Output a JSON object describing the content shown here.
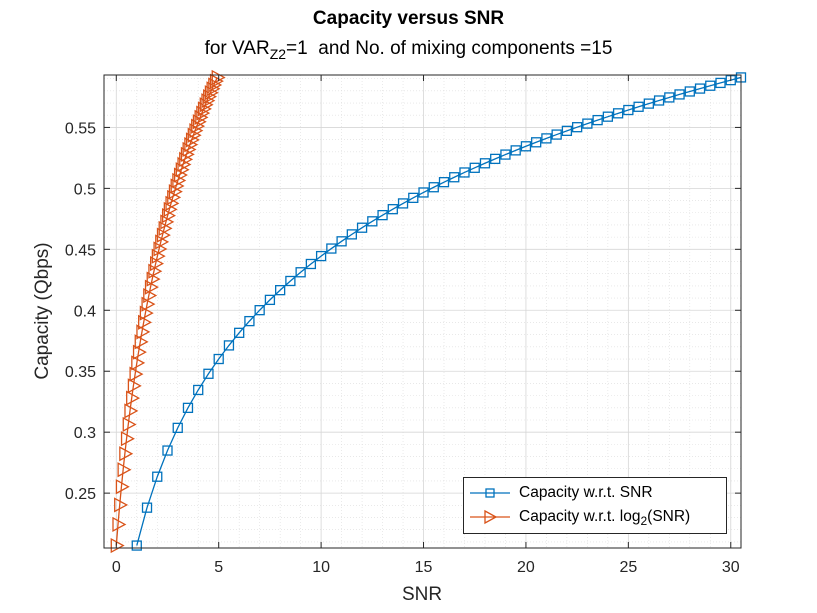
{
  "chart_data": {
    "type": "line",
    "title": "Capacity versus SNR",
    "subtitle": {
      "prefix": "for VAR",
      "subscript": "Z2",
      "suffix": "=1  and No. of mixing components =15"
    },
    "xlabel": "SNR",
    "ylabel": "Capacity (Qbps)",
    "xlim": [
      -0.6,
      30.5
    ],
    "ylim": [
      0.205,
      0.593
    ],
    "xticks": [
      0,
      5,
      10,
      15,
      20,
      25,
      30
    ],
    "xtick_labels": [
      "0",
      "5",
      "10",
      "15",
      "20",
      "25",
      "30"
    ],
    "yticks": [
      0.25,
      0.3,
      0.35,
      0.4,
      0.45,
      0.5,
      0.55
    ],
    "ytick_labels": [
      "0.25",
      "0.3",
      "0.35",
      "0.4",
      "0.45",
      "0.5",
      "0.55"
    ],
    "grid": true,
    "minor_grid": true,
    "legend_location": "bottom-right",
    "series": [
      {
        "name": "Capacity w.r.t. SNR",
        "color": "#0072BD",
        "marker": "square",
        "x_start": 1.0,
        "x_end": 30.5,
        "n_points": 60,
        "y_at_start": 0.207,
        "y_at_end": 0.591,
        "shape": "log"
      },
      {
        "name": "Capacity w.r.t. log2(SNR)",
        "color": "#D95319",
        "marker": "triangle-right",
        "x_start": 0.0,
        "x_end": 4.93,
        "n_points": 60,
        "y_at_start": 0.207,
        "y_at_end": 0.591,
        "shape": "log"
      }
    ]
  },
  "legend": {
    "item1": {
      "label": "Capacity w.r.t. SNR"
    },
    "item2": {
      "prefix": "Capacity w.r.t. log",
      "subscript": "2",
      "suffix": "(SNR)"
    }
  }
}
